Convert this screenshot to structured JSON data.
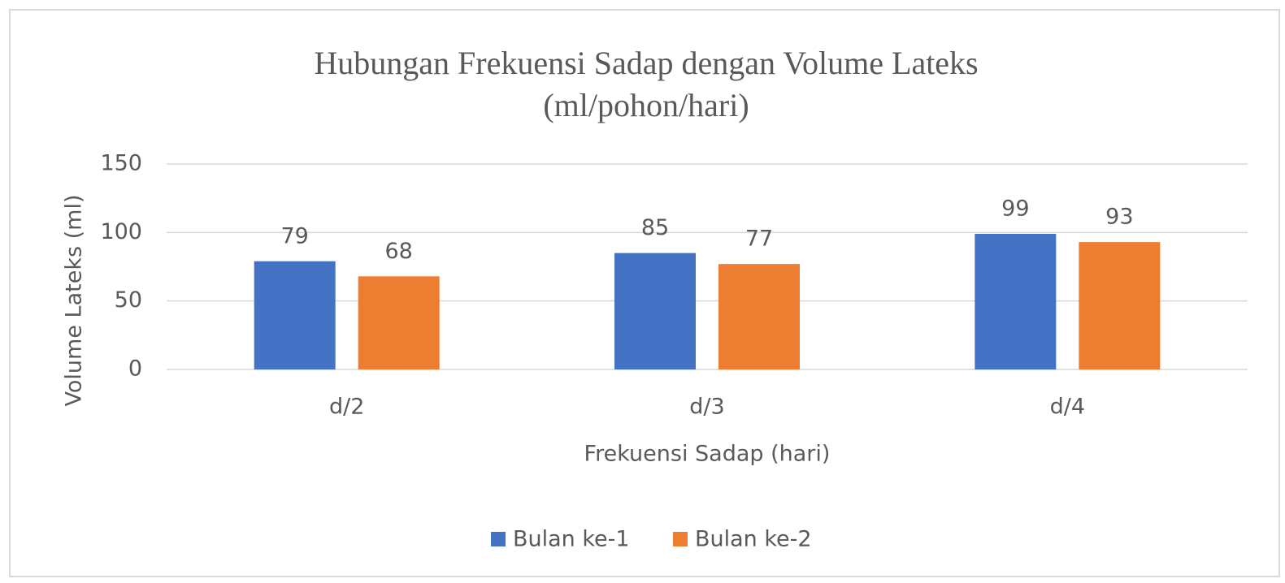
{
  "chart_data": {
    "type": "bar",
    "title": [
      "Hubungan Frekuensi Sadap dengan Volume Lateks",
      "(ml/pohon/hari)"
    ],
    "x_label": "Frekuensi Sadap (hari)",
    "y_label": "Volume Lateks (ml)",
    "categories": [
      "d/2",
      "d/3",
      "d/4"
    ],
    "series": [
      {
        "name": "Bulan ke-1",
        "color": "#4472c4",
        "values": [
          79,
          85,
          99
        ]
      },
      {
        "name": "Bulan ke-2",
        "color": "#ed7d31",
        "values": [
          68,
          77,
          93
        ]
      }
    ],
    "ylim": [
      0,
      150
    ],
    "yticks": [
      0,
      50,
      100,
      150
    ],
    "grid": true,
    "legend": "bottom"
  }
}
